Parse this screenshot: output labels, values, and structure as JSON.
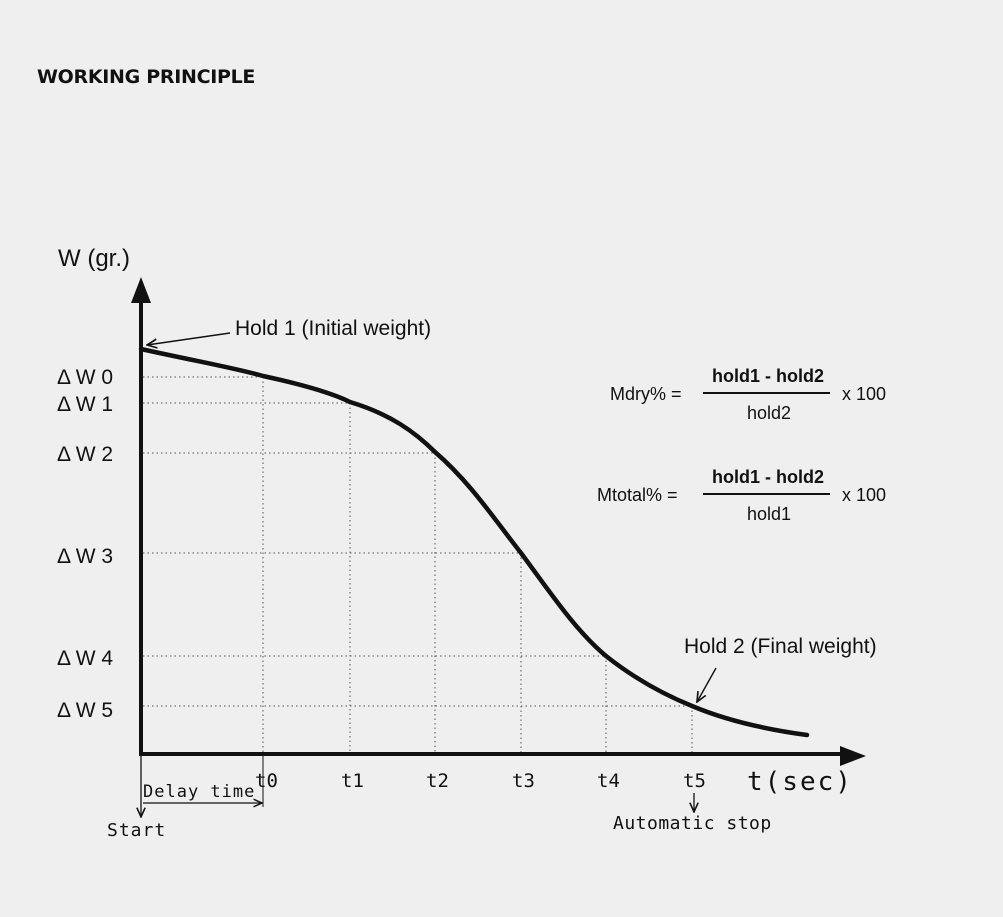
{
  "title": "WORKING PRINCIPLE",
  "y_axis_label": "W (gr.)",
  "x_axis_label": "t(sec)",
  "weight_levels": [
    "Δ W 0",
    "Δ W 1",
    "Δ W 2",
    "Δ W 3",
    "Δ W 4",
    "Δ W 5"
  ],
  "time_marks": [
    "t0",
    "t1",
    "t2",
    "t3",
    "t4",
    "t5"
  ],
  "annotations": {
    "hold1": "Hold 1 (Initial weight)",
    "hold2": "Hold 2 (Final weight)",
    "delay": "Delay time",
    "start": "Start",
    "auto_stop": "Automatic stop"
  },
  "formulas": {
    "mdry": {
      "label": "Mdry% =",
      "numerator": "hold1 - hold2",
      "denominator": "hold2",
      "multiplier": "x 100"
    },
    "mtotal": {
      "label": "Mtotal% =",
      "numerator": "hold1 - hold2",
      "denominator": "hold1",
      "multiplier": "x 100"
    }
  },
  "colors": {
    "background": "#efefef",
    "ink": "#111111",
    "grid": "#555555"
  }
}
